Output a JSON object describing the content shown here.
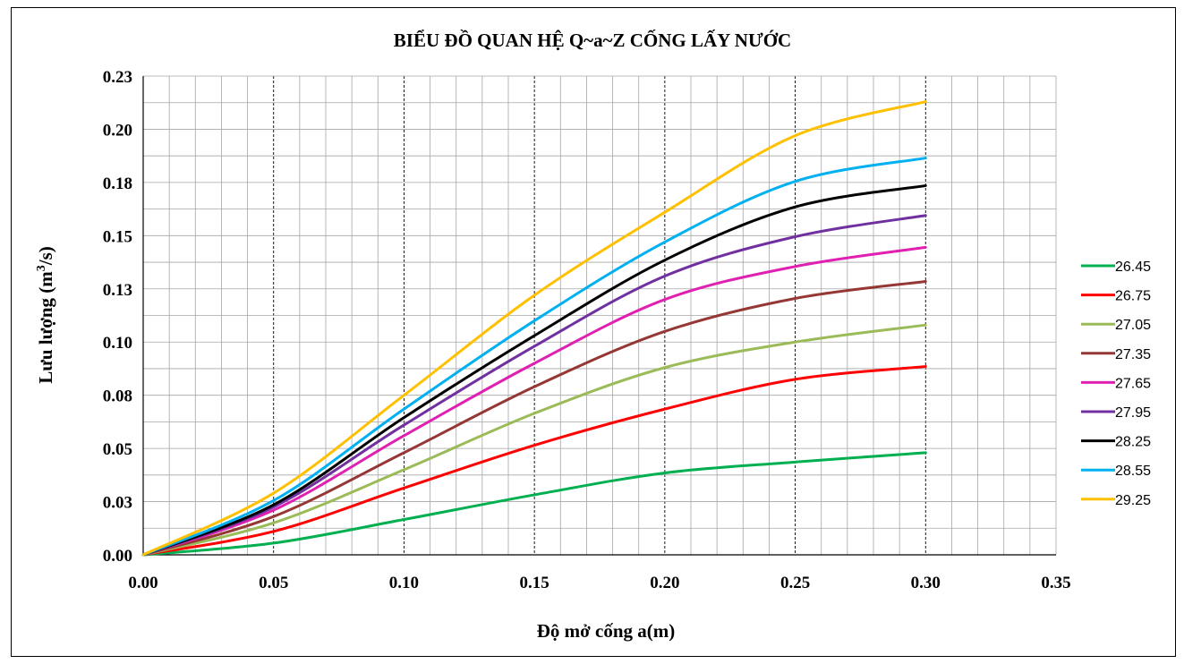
{
  "chart_data": {
    "type": "line",
    "title": "BIỂU ĐỒ QUAN HỆ Q~a~Z CỐNG LẤY NƯỚC",
    "xlabel": "Độ mở cống a(m)",
    "ylabel_main": "Lưu lượng (m",
    "ylabel_sup": "3",
    "ylabel_tail": "/s)",
    "xlim": [
      0,
      0.35
    ],
    "ylim": [
      0,
      0.225
    ],
    "x_ticks": [
      "0.00",
      "0.05",
      "0.10",
      "0.15",
      "0.20",
      "0.25",
      "0.30",
      "0.35"
    ],
    "y_ticks": [
      "0.00",
      "0.03",
      "0.05",
      "0.08",
      "0.10",
      "0.13",
      "0.15",
      "0.18",
      "0.20",
      "0.23"
    ],
    "grid": true,
    "legend_position": "right",
    "x": [
      0,
      0.05,
      0.1,
      0.15,
      0.2,
      0.25,
      0.3
    ],
    "series": [
      {
        "name": "26.45",
        "color": "#00b050",
        "values": [
          0,
          0.0055,
          0.0166,
          0.0282,
          0.0385,
          0.0436,
          0.048
        ]
      },
      {
        "name": "26.75",
        "color": "#ff0000",
        "values": [
          0,
          0.011,
          0.0314,
          0.0515,
          0.0685,
          0.0825,
          0.0885
        ]
      },
      {
        "name": "27.05",
        "color": "#9bbb59",
        "values": [
          0,
          0.015,
          0.04,
          0.0665,
          0.088,
          0.1,
          0.108
        ]
      },
      {
        "name": "27.35",
        "color": "#953735",
        "values": [
          0,
          0.018,
          0.048,
          0.079,
          0.105,
          0.1205,
          0.1285
        ]
      },
      {
        "name": "27.65",
        "color": "#e020b0",
        "values": [
          0,
          0.021,
          0.056,
          0.09,
          0.12,
          0.1355,
          0.1445
        ]
      },
      {
        "name": "27.95",
        "color": "#7030a0",
        "values": [
          0,
          0.0225,
          0.061,
          0.098,
          0.131,
          0.1495,
          0.1595
        ]
      },
      {
        "name": "28.25",
        "color": "#000000",
        "values": [
          0,
          0.0235,
          0.0645,
          0.103,
          0.1385,
          0.1635,
          0.1735
        ]
      },
      {
        "name": "28.55",
        "color": "#00b0f0",
        "values": [
          0,
          0.0255,
          0.0685,
          0.11,
          0.147,
          0.1755,
          0.1865
        ]
      },
      {
        "name": "29.25",
        "color": "#ffc000",
        "values": [
          0,
          0.029,
          0.075,
          0.122,
          0.161,
          0.197,
          0.213
        ]
      }
    ]
  }
}
